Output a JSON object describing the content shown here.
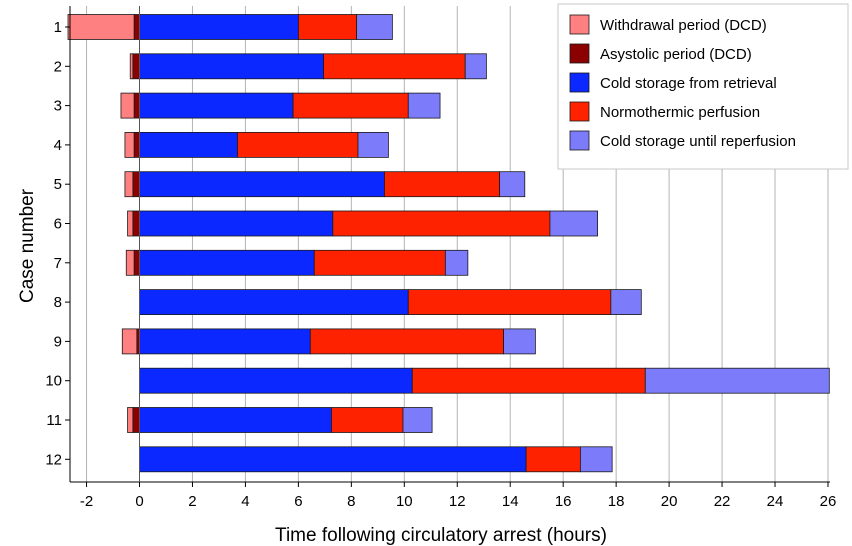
{
  "chart_data": {
    "type": "bar",
    "orientation": "horizontal",
    "stacked": true,
    "xlabel": "Time following circulatory arrest (hours)",
    "ylabel": "Case number",
    "xlim": [
      -2.5,
      26
    ],
    "xticks": [
      -2,
      0,
      2,
      4,
      6,
      8,
      10,
      12,
      14,
      16,
      18,
      20,
      22,
      24,
      26
    ],
    "grid": "vertical",
    "legend_position": "top-right",
    "categories": [
      "1",
      "2",
      "3",
      "4",
      "5",
      "6",
      "7",
      "8",
      "9",
      "10",
      "11",
      "12"
    ],
    "series": [
      {
        "name": "Withdrawal period (DCD)",
        "color": "#ff8080",
        "values": [
          2.5,
          0.1,
          0.5,
          0.35,
          0.3,
          0.2,
          0.3,
          0,
          0.55,
          0,
          0.2,
          0
        ]
      },
      {
        "name": "Asystolic period (DCD)",
        "color": "#8b0000",
        "values": [
          0.2,
          0.25,
          0.2,
          0.2,
          0.25,
          0.25,
          0.2,
          0,
          0.1,
          0,
          0.25,
          0
        ]
      },
      {
        "name": "Cold storage from retrieval",
        "color": "#0a28ff",
        "values": [
          6.0,
          6.95,
          5.8,
          3.7,
          9.25,
          7.3,
          6.6,
          10.15,
          6.45,
          10.3,
          7.25,
          14.6
        ]
      },
      {
        "name": "Normothermic perfusion",
        "color": "#ff2200",
        "values": [
          2.2,
          5.35,
          4.35,
          4.55,
          4.35,
          8.2,
          4.95,
          7.65,
          7.3,
          8.8,
          2.7,
          2.05
        ]
      },
      {
        "name": "Cold storage until reperfusion",
        "color": "#7c7cfa",
        "values": [
          1.35,
          0.8,
          1.2,
          1.15,
          0.95,
          1.8,
          0.85,
          1.15,
          1.2,
          6.95,
          1.1,
          1.2
        ]
      }
    ]
  }
}
